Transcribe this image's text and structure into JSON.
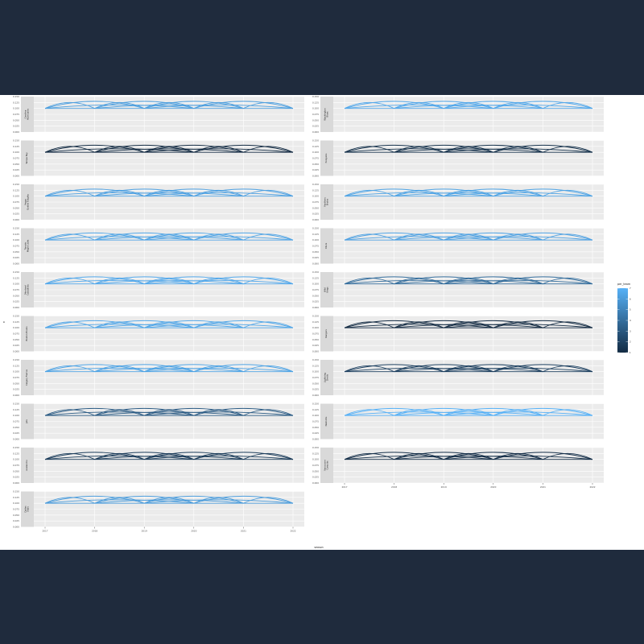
{
  "chart_data": {
    "type": "line",
    "description_free": true,
    "xlabel": "season",
    "ylabel": "n",
    "x_ticks": [
      "2017",
      "2018",
      "2019",
      "2020",
      "2021",
      "2022"
    ],
    "x_range": [
      2017,
      2022
    ],
    "y_ticks": [
      "0.000",
      "0.025",
      "0.050",
      "0.075",
      "0.100",
      "0.125",
      "0.150"
    ],
    "y_range": [
      0.0,
      0.15
    ],
    "legend": {
      "title": "per_team",
      "ticks": [
        "1",
        "2",
        "3",
        "4",
        "5",
        "6",
        "7"
      ],
      "range": [
        1,
        7
      ],
      "low_color": "#132b43",
      "high_color": "#56b1f7",
      "placement": "right"
    },
    "baseline": 0.1,
    "arcs": [
      {
        "from": 2017,
        "to": 2018,
        "peak": 0.125
      },
      {
        "from": 2018,
        "to": 2019,
        "peak": 0.125
      },
      {
        "from": 2019,
        "to": 2020,
        "peak": 0.125
      },
      {
        "from": 2020,
        "to": 2021,
        "peak": 0.125
      },
      {
        "from": 2021,
        "to": 2022,
        "peak": 0.125
      },
      {
        "from": 2017,
        "to": 2019,
        "peak": 0.13
      },
      {
        "from": 2018,
        "to": 2020,
        "peak": 0.13
      },
      {
        "from": 2019,
        "to": 2021,
        "peak": 0.13
      },
      {
        "from": 2020,
        "to": 2022,
        "peak": 0.13
      },
      {
        "from": 2017,
        "to": 2020,
        "peak": 0.115
      },
      {
        "from": 2018,
        "to": 2021,
        "peak": 0.115
      },
      {
        "from": 2019,
        "to": 2022,
        "peak": 0.115
      },
      {
        "from": 2017,
        "to": 2022,
        "peak": 0.1
      }
    ],
    "panels_left": [
      {
        "strip": [
          "Carolina",
          "Hurricanes"
        ],
        "per_team": 6.2
      },
      {
        "strip": [
          "Tampa Bay"
        ],
        "per_team": 1.0
      },
      {
        "strip": [
          "Vegas",
          "Golden Knights"
        ],
        "per_team": 6.3
      },
      {
        "strip": [
          "Toronto",
          "Maple Leafs"
        ],
        "per_team": 6.4
      },
      {
        "strip": [
          "Montreal",
          "Canadiens"
        ],
        "per_team": 6.6
      },
      {
        "strip": [
          "Boston Bruins"
        ],
        "per_team": 6.5
      },
      {
        "strip": [
          "Calgary Flames"
        ],
        "per_team": 6.4
      },
      {
        "strip": [
          "Jets"
        ],
        "per_team": 3.2
      },
      {
        "strip": [
          "Avalanche"
        ],
        "per_team": 1.8
      },
      {
        "strip": [
          "Dallas",
          "Stars"
        ],
        "per_team": 6.1
      }
    ],
    "panels_right": [
      {
        "strip": [
          "Washington",
          "Blues"
        ],
        "per_team": 6.6
      },
      {
        "strip": [
          "Penguins"
        ],
        "per_team": 1.3
      },
      {
        "strip": [
          "Panthers",
          "Bruins"
        ],
        "per_team": 6.4
      },
      {
        "strip": [
          "Oilers"
        ],
        "per_team": 6.3
      },
      {
        "strip": [
          "Wild",
          "Kings"
        ],
        "per_team": 4.0
      },
      {
        "strip": [
          "Rangers"
        ],
        "per_team": 1.0
      },
      {
        "strip": [
          "Lightning",
          "Devils"
        ],
        "per_team": 2.0
      },
      {
        "strip": [
          "Nashville"
        ],
        "per_team": 7.0
      },
      {
        "strip": [
          "Vancouver",
          "Canucks"
        ],
        "per_team": 1.2
      }
    ]
  }
}
